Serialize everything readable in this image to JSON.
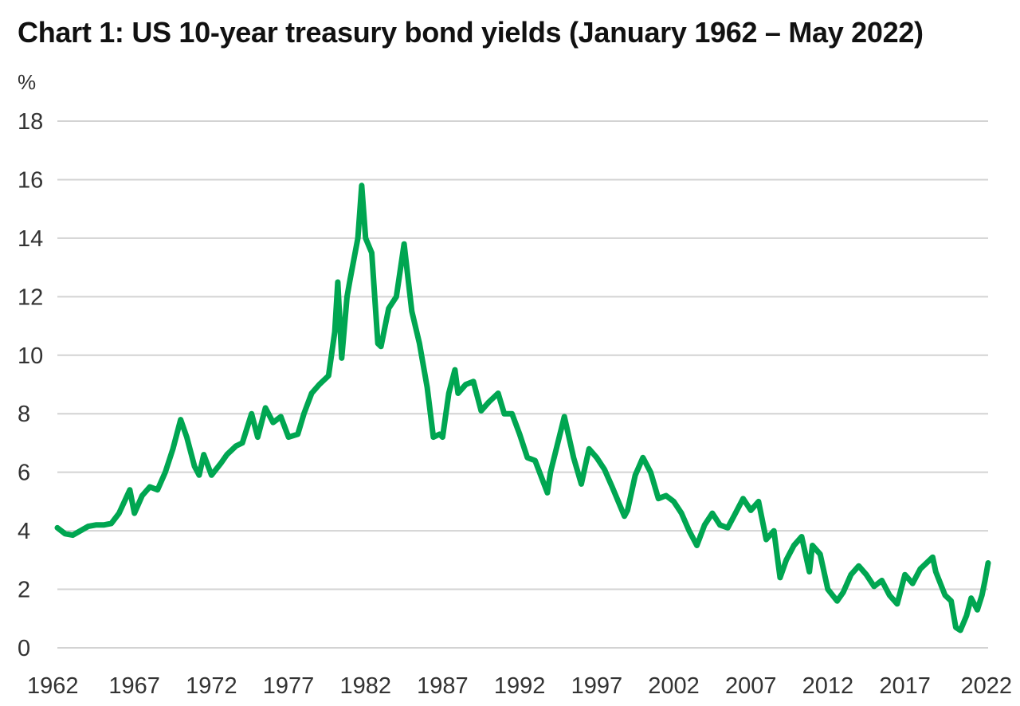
{
  "chart_data": {
    "type": "line",
    "title": "Chart 1: US 10-year treasury bond yields (January 1962 – May 2022)",
    "ylabel": "%",
    "xlabel": "",
    "xlim": [
      1962,
      2022.4
    ],
    "ylim": [
      0,
      18
    ],
    "yticks": [
      "0",
      "2",
      "4",
      "6",
      "8",
      "10",
      "12",
      "14",
      "16",
      "18"
    ],
    "xticks": [
      "1962",
      "1967",
      "1972",
      "1977",
      "1982",
      "1987",
      "1992",
      "1997",
      "2002",
      "2007",
      "2012",
      "2017",
      "2022"
    ],
    "grid": true,
    "line_color": "#00a651",
    "series": [
      {
        "x": [
          1962.0,
          1962.5,
          1963.0,
          1963.5,
          1964.0,
          1964.5,
          1965.0,
          1965.5,
          1966.0,
          1966.7,
          1967.0,
          1967.5,
          1968.0,
          1968.5,
          1969.0,
          1969.5,
          1970.0,
          1970.4,
          1970.9,
          1971.2,
          1971.5,
          1972.0,
          1972.6,
          1973.0,
          1973.6,
          1974.0,
          1974.6,
          1975.0,
          1975.5,
          1976.0,
          1976.5,
          1977.0,
          1977.6,
          1978.0,
          1978.5,
          1979.0,
          1979.6,
          1980.0,
          1980.2,
          1980.45,
          1980.8,
          1981.0,
          1981.5,
          1981.75,
          1982.0,
          1982.4,
          1982.8,
          1983.0,
          1983.5,
          1984.0,
          1984.5,
          1985.0,
          1985.5,
          1986.0,
          1986.4,
          1986.8,
          1987.0,
          1987.4,
          1987.8,
          1988.0,
          1988.5,
          1989.0,
          1989.5,
          1990.0,
          1990.6,
          1991.0,
          1991.5,
          1992.0,
          1992.5,
          1993.0,
          1993.8,
          1994.0,
          1994.9,
          1995.5,
          1996.0,
          1996.5,
          1997.0,
          1997.5,
          1998.0,
          1998.8,
          1999.0,
          1999.5,
          2000.0,
          2000.5,
          2001.0,
          2001.5,
          2002.0,
          2002.5,
          2003.0,
          2003.5,
          2004.0,
          2004.5,
          2005.0,
          2005.5,
          2006.0,
          2006.5,
          2007.0,
          2007.5,
          2008.0,
          2008.5,
          2008.9,
          2009.3,
          2009.8,
          2010.3,
          2010.8,
          2011.0,
          2011.5,
          2012.0,
          2012.6,
          2013.0,
          2013.5,
          2014.0,
          2014.5,
          2015.0,
          2015.5,
          2016.0,
          2016.5,
          2017.0,
          2017.5,
          2018.0,
          2018.8,
          2019.0,
          2019.6,
          2020.0,
          2020.3,
          2020.6,
          2021.0,
          2021.3,
          2021.7,
          2022.0,
          2022.2,
          2022.4
        ],
        "y": [
          4.1,
          3.9,
          3.85,
          4.0,
          4.15,
          4.2,
          4.2,
          4.25,
          4.6,
          5.4,
          4.6,
          5.2,
          5.5,
          5.4,
          6.0,
          6.8,
          7.8,
          7.2,
          6.2,
          5.9,
          6.6,
          5.9,
          6.3,
          6.6,
          6.9,
          7.0,
          8.0,
          7.2,
          8.2,
          7.7,
          7.9,
          7.2,
          7.3,
          8.0,
          8.7,
          9.0,
          9.3,
          10.8,
          12.5,
          9.9,
          12.0,
          12.6,
          14.0,
          15.8,
          14.0,
          13.5,
          10.4,
          10.3,
          11.6,
          12.0,
          13.8,
          11.5,
          10.4,
          8.9,
          7.2,
          7.3,
          7.2,
          8.7,
          9.5,
          8.7,
          9.0,
          9.1,
          8.1,
          8.4,
          8.7,
          8.0,
          8.0,
          7.3,
          6.5,
          6.4,
          5.3,
          6.0,
          7.9,
          6.5,
          5.6,
          6.8,
          6.5,
          6.1,
          5.5,
          4.5,
          4.7,
          5.9,
          6.5,
          6.0,
          5.1,
          5.2,
          5.0,
          4.6,
          4.0,
          3.5,
          4.2,
          4.6,
          4.2,
          4.1,
          4.6,
          5.1,
          4.7,
          5.0,
          3.7,
          4.0,
          2.4,
          3.0,
          3.5,
          3.8,
          2.6,
          3.5,
          3.2,
          2.0,
          1.6,
          1.9,
          2.5,
          2.8,
          2.5,
          2.1,
          2.3,
          1.8,
          1.5,
          2.5,
          2.2,
          2.7,
          3.1,
          2.6,
          1.8,
          1.6,
          0.7,
          0.6,
          1.1,
          1.7,
          1.3,
          1.8,
          2.3,
          2.9
        ]
      }
    ]
  }
}
